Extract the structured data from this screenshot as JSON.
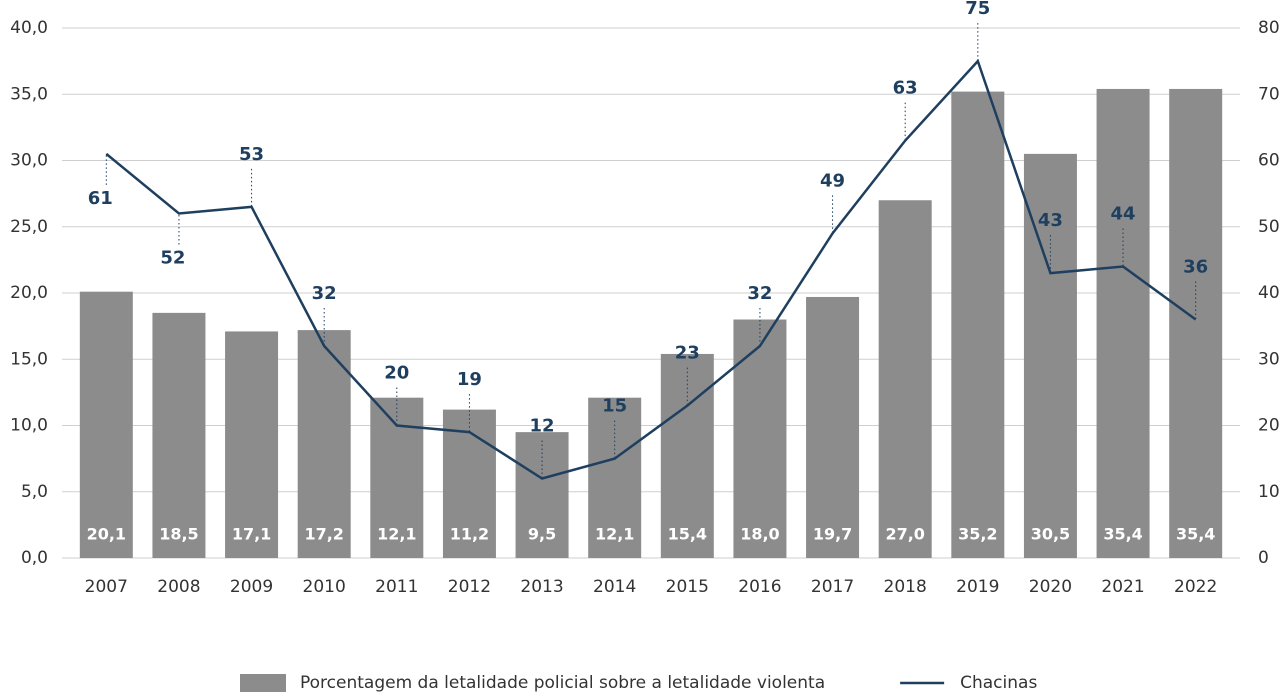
{
  "chart_data": {
    "type": "bar",
    "categories": [
      "2007",
      "2008",
      "2009",
      "2010",
      "2011",
      "2012",
      "2013",
      "2014",
      "2015",
      "2016",
      "2017",
      "2018",
      "2019",
      "2020",
      "2021",
      "2022"
    ],
    "series": [
      {
        "name": "Porcentagem da letalidade policial sobre a letalidade violenta",
        "type": "bar",
        "color": "#8c8c8c",
        "values": [
          20.1,
          18.5,
          17.1,
          17.2,
          12.1,
          11.2,
          9.5,
          12.1,
          15.4,
          18.0,
          19.7,
          27.0,
          35.2,
          30.5,
          35.4,
          35.4
        ],
        "value_labels": [
          "20,1",
          "18,5",
          "17,1",
          "17,2",
          "12,1",
          "11,2",
          "9,5",
          "12,1",
          "15,4",
          "18,0",
          "19,7",
          "27,0",
          "35,2",
          "30,5",
          "35,4",
          "35,4"
        ]
      },
      {
        "name": "Chacinas",
        "type": "line",
        "axis": "y2",
        "color": "#1f3f5f",
        "values": [
          61,
          52,
          53,
          32,
          20,
          19,
          12,
          15,
          23,
          32,
          49,
          63,
          75,
          43,
          44,
          36
        ]
      }
    ],
    "ylim": [
      0,
      40
    ],
    "yticks": [
      {
        "value": 0,
        "label": "0,0"
      },
      {
        "value": 5,
        "label": "5,0"
      },
      {
        "value": 10,
        "label": "10,0"
      },
      {
        "value": 15,
        "label": "15,0"
      },
      {
        "value": 20,
        "label": "20,0"
      },
      {
        "value": 25,
        "label": "25,0"
      },
      {
        "value": 30,
        "label": "30,0"
      },
      {
        "value": 35,
        "label": "35,0"
      },
      {
        "value": 40,
        "label": "40,0"
      }
    ],
    "y2lim": [
      0,
      80
    ],
    "y2ticks": [
      0,
      10,
      20,
      30,
      40,
      50,
      60,
      70,
      80
    ],
    "grid": true,
    "legend": "bottom"
  }
}
